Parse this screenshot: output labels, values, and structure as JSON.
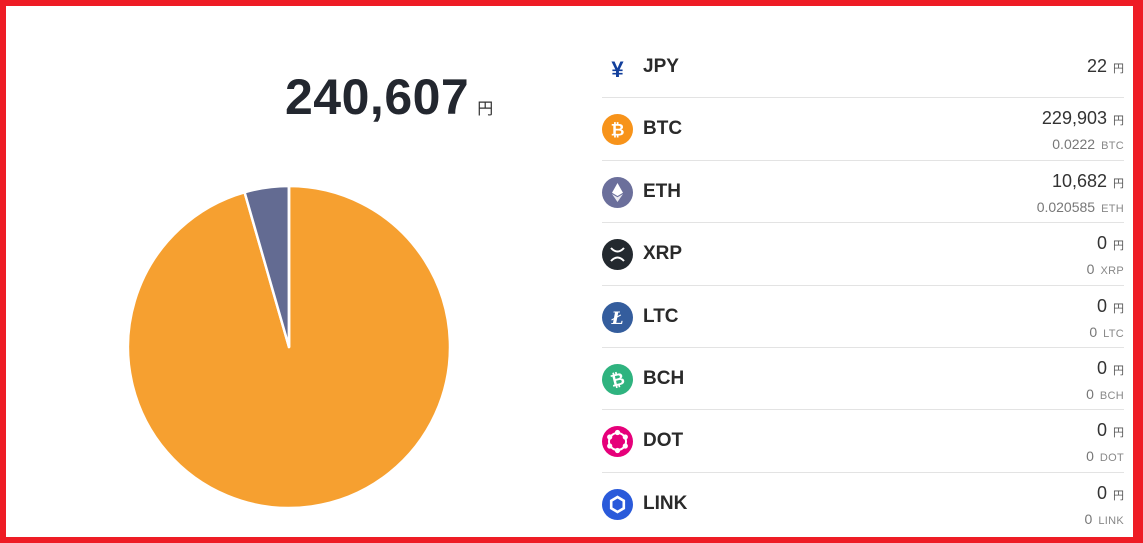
{
  "total": {
    "value": "240,607",
    "unit": "円"
  },
  "chart_data": {
    "type": "pie",
    "slices": [
      {
        "label": "BTC",
        "value": 229903,
        "color": "#f6a030"
      },
      {
        "label": "ETH",
        "value": 10682,
        "color": "#636b92"
      },
      {
        "label": "JPY",
        "value": 22,
        "color": "#0a3a8c"
      }
    ]
  },
  "assets": [
    {
      "symbol": "JPY",
      "jpy": "22",
      "jpy_unit": "円",
      "icon": "yen-icon",
      "color": "#123f9c"
    },
    {
      "symbol": "BTC",
      "jpy": "229,903",
      "jpy_unit": "円",
      "amount": "0.0222",
      "amount_unit": "BTC",
      "icon": "bitcoin-icon",
      "color": "#f7931a"
    },
    {
      "symbol": "ETH",
      "jpy": "10,682",
      "jpy_unit": "円",
      "amount": "0.020585",
      "amount_unit": "ETH",
      "icon": "ethereum-icon",
      "color": "#6b6f9b"
    },
    {
      "symbol": "XRP",
      "jpy": "0",
      "jpy_unit": "円",
      "amount": "0",
      "amount_unit": "XRP",
      "icon": "xrp-icon",
      "color": "#23292f"
    },
    {
      "symbol": "LTC",
      "jpy": "0",
      "jpy_unit": "円",
      "amount": "0",
      "amount_unit": "LTC",
      "icon": "litecoin-icon",
      "color": "#345d9d"
    },
    {
      "symbol": "BCH",
      "jpy": "0",
      "jpy_unit": "円",
      "amount": "0",
      "amount_unit": "BCH",
      "icon": "bitcoin-cash-icon",
      "color": "#2fb37f"
    },
    {
      "symbol": "DOT",
      "jpy": "0",
      "jpy_unit": "円",
      "amount": "0",
      "amount_unit": "DOT",
      "icon": "polkadot-icon",
      "color": "#e6007a"
    },
    {
      "symbol": "LINK",
      "jpy": "0",
      "jpy_unit": "円",
      "amount": "0",
      "amount_unit": "LINK",
      "icon": "chainlink-icon",
      "color": "#2a5ada"
    }
  ]
}
